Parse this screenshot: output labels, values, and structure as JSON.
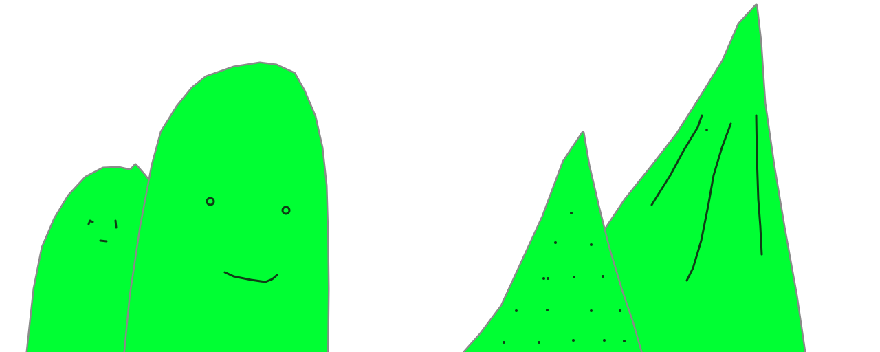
{
  "scene": {
    "background": "#ffffff",
    "fill_color": "#00ff33",
    "outline_color": "#8a8a8a",
    "ink_color": "#0f3d16",
    "shapes": [
      {
        "name": "small-blob",
        "feature": "face"
      },
      {
        "name": "large-blob",
        "feature": "smiling-face"
      },
      {
        "name": "small-triangle",
        "feature": "dots"
      },
      {
        "name": "tall-triangle",
        "feature": "stripes"
      }
    ]
  }
}
